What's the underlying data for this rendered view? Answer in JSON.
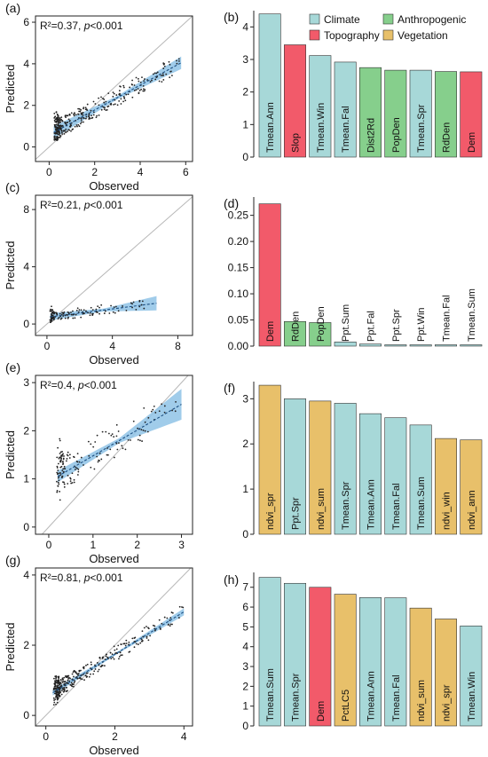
{
  "legend": [
    {
      "key": "climate",
      "label": "Climate",
      "color": "#a7d8d8"
    },
    {
      "key": "topography",
      "label": "Topography",
      "color": "#f25a6a"
    },
    {
      "key": "anthropogenic",
      "label": "Anthropogenic",
      "color": "#86cf8c"
    },
    {
      "key": "vegetation",
      "label": "Vegetation",
      "color": "#e8c06a"
    }
  ],
  "colors": {
    "fit_line": "#1c4f82",
    "ci_band": "#8fc3e6",
    "points": "#222222",
    "identity": "#b8b8b8"
  },
  "chart_data": [
    {
      "type": "scatter",
      "panel": "(a)",
      "r2": "R²=0.37",
      "sep": ", ",
      "p": "p",
      "pval": "<0.001",
      "xlabel": "Observed",
      "ylabel": "Predicted",
      "xlim": [
        -0.6,
        6.3
      ],
      "ylim": [
        -0.7,
        6.3
      ],
      "xticks": [
        0,
        2,
        4,
        6
      ],
      "yticks": [
        0,
        2,
        4,
        6
      ],
      "fit": {
        "x0": 0.2,
        "y0": 0.7,
        "x1": 5.8,
        "y1": 4.05,
        "ci0": 0.3,
        "cim": 0.08,
        "ci1": 0.3
      },
      "scatter_seed": 11,
      "n_points": 360,
      "x_peak": 0.3,
      "x_max": 5.8,
      "noise": 0.45,
      "y_floor": 0.3
    },
    {
      "type": "bar",
      "panel": "(b)",
      "categories": [
        "Tmean.Ann",
        "Slop",
        "Tmean.Win",
        "Tmean.Fal",
        "Dist2Rd",
        "PopDen",
        "Tmean.Spr",
        "RdDen",
        "Dem"
      ],
      "groups": [
        "climate",
        "topography",
        "climate",
        "climate",
        "anthropogenic",
        "anthropogenic",
        "climate",
        "anthropogenic",
        "topography"
      ],
      "values": [
        4.4,
        3.45,
        3.12,
        2.92,
        2.75,
        2.67,
        2.67,
        2.63,
        2.62
      ],
      "ylim": [
        0,
        4.5
      ],
      "yticks": [
        0,
        1,
        2,
        3,
        4
      ],
      "ytick_fmt": 0
    },
    {
      "type": "scatter",
      "panel": "(c)",
      "r2": "R²=0.21",
      "sep": ", ",
      "p": "p",
      "pval": "<0.001",
      "xlabel": "Observed",
      "ylabel": "Predicted",
      "xlim": [
        -0.7,
        8.9
      ],
      "ylim": [
        -0.8,
        9
      ],
      "xticks": [
        0,
        4,
        8
      ],
      "yticks": [
        0,
        4,
        8
      ],
      "fit": {
        "x0": 0.2,
        "y0": 0.5,
        "x1": 6.7,
        "y1": 1.45,
        "ci0": 0.25,
        "cim": 0.1,
        "ci1": 0.5
      },
      "scatter_seed": 23,
      "n_points": 140,
      "x_peak": 0.25,
      "x_max": 6.7,
      "noise": 0.35,
      "y_floor": 0.1
    },
    {
      "type": "bar",
      "panel": "(d)",
      "categories": [
        "Dem",
        "RdDen",
        "PopDen",
        "Ppt.Sum",
        "Ppt.Fal",
        "Ppt.Spr",
        "Ppt.Win",
        "Tmean.Fal",
        "Tmean.Sum"
      ],
      "groups": [
        "topography",
        "anthropogenic",
        "anthropogenic",
        "climate",
        "climate",
        "climate",
        "climate",
        "climate",
        "climate"
      ],
      "values": [
        0.272,
        0.047,
        0.045,
        0.008,
        0.004,
        0.002,
        0.002,
        0.002,
        0.002
      ],
      "ylim": [
        0,
        0.285
      ],
      "yticks": [
        0,
        0.05,
        0.1,
        0.15,
        0.2,
        0.25
      ],
      "ytick_fmt": 2
    },
    {
      "type": "scatter",
      "panel": "(e)",
      "r2": "R²=0.4",
      "sep": ", ",
      "p": "p",
      "pval": "<0.001",
      "xlabel": "Observed",
      "ylabel": "Predicted",
      "xlim": [
        -0.3,
        3.25
      ],
      "ylim": [
        -0.15,
        3.15
      ],
      "xticks": [
        0,
        1,
        2,
        3
      ],
      "yticks": [
        0,
        1,
        2,
        3
      ],
      "fit": {
        "x0": 0.2,
        "y0": 1.05,
        "x1": 3.0,
        "y1": 2.55,
        "ci0": 0.12,
        "cim": 0.05,
        "ci1": 0.32
      },
      "scatter_seed": 37,
      "n_points": 160,
      "x_peak": 0.25,
      "x_max": 3.0,
      "noise": 0.35,
      "y_floor": 0.5
    },
    {
      "type": "bar",
      "panel": "(f)",
      "categories": [
        "ndvi_spr",
        "Ppt.Spr",
        "ndvi_sum",
        "Tmean.Spr",
        "Tmean.Ann",
        "Tmean.Fal",
        "Tmean.Sum",
        "ndvi_win",
        "ndvi_ann"
      ],
      "groups": [
        "vegetation",
        "climate",
        "vegetation",
        "climate",
        "climate",
        "climate",
        "climate",
        "vegetation",
        "vegetation"
      ],
      "values": [
        3.3,
        3.0,
        2.95,
        2.9,
        2.67,
        2.58,
        2.42,
        2.12,
        2.09
      ],
      "ylim": [
        0,
        3.38
      ],
      "yticks": [
        0,
        1,
        2,
        3
      ],
      "ytick_fmt": 0
    },
    {
      "type": "scatter",
      "panel": "(g)",
      "r2": "R²=0.81",
      "sep": ", ",
      "p": "p",
      "pval": "<0.001",
      "xlabel": "Observed",
      "ylabel": "Predicted",
      "xlim": [
        -0.3,
        4.25
      ],
      "ylim": [
        -0.3,
        4.2
      ],
      "xticks": [
        0,
        2,
        4
      ],
      "yticks": [
        0,
        2,
        4
      ],
      "fit": {
        "x0": 0.2,
        "y0": 0.65,
        "x1": 4.0,
        "y1": 2.95,
        "ci0": 0.08,
        "cim": 0.03,
        "ci1": 0.1
      },
      "scatter_seed": 53,
      "n_points": 340,
      "x_peak": 0.3,
      "x_max": 4.0,
      "noise": 0.22,
      "y_floor": 0.3
    },
    {
      "type": "bar",
      "panel": "(h)",
      "categories": [
        "Tmean.Sum",
        "Tmean.Spr",
        "Dem",
        "PctLC5",
        "Tmean.Ann",
        "Tmean.Fal",
        "ndvi_sum",
        "ndvi_spr",
        "Tmean.Win"
      ],
      "groups": [
        "climate",
        "climate",
        "topography",
        "vegetation",
        "climate",
        "climate",
        "vegetation",
        "vegetation",
        "climate"
      ],
      "values": [
        7.5,
        7.2,
        7.0,
        6.65,
        6.48,
        6.47,
        5.95,
        5.4,
        5.05
      ],
      "ylim": [
        0,
        7.75
      ],
      "yticks": [
        0,
        1,
        2,
        3,
        4,
        5,
        6,
        7
      ],
      "ytick_fmt": 0
    }
  ]
}
